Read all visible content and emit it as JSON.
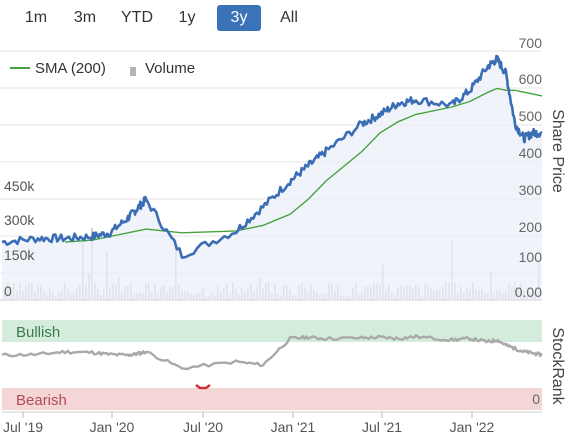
{
  "range_tabs": [
    {
      "label": "1m",
      "active": false
    },
    {
      "label": "3m",
      "active": false
    },
    {
      "label": "YTD",
      "active": false
    },
    {
      "label": "1y",
      "active": false
    },
    {
      "label": "3y",
      "active": true
    },
    {
      "label": "All",
      "active": false
    }
  ],
  "legend": {
    "sma_label": "SMA (200)",
    "volume_label": "Volume"
  },
  "axis": {
    "right_title": "Share Price",
    "stockrank_title": "StockRank",
    "price_ticks": [
      "700",
      "600",
      "500",
      "400",
      "300",
      "200",
      "100",
      "0.00"
    ],
    "volume_ticks": [
      "450k",
      "300k",
      "150k",
      "0"
    ],
    "x_ticks": [
      "Jul '19",
      "Jan '20",
      "Jul '20",
      "Jan '21",
      "Jul '21",
      "Jan '22"
    ],
    "stockrank_zero": "0"
  },
  "bands": {
    "bullish": "Bullish",
    "bearish": "Bearish"
  },
  "colors": {
    "price": "#3b6db5",
    "sma": "#46a33e",
    "bullish_bg": "#d3ecdc",
    "bearish_bg": "#f4d6d7",
    "stockrank": "#a9a9a9",
    "tab_active": "#3b73b9"
  },
  "chart_data": {
    "type": "line",
    "x": [
      0,
      0.2,
      0.35,
      0.5,
      0.6,
      0.7,
      0.75,
      0.8,
      1.0,
      1.3,
      1.45,
      1.6,
      1.7,
      1.8,
      2.0,
      2.1,
      2.2,
      2.3,
      2.5,
      2.6,
      2.7,
      2.75,
      2.8,
      2.85,
      2.9,
      2.95,
      3.0
    ],
    "x_tick_labels": [
      "Jul '19",
      "Jan '20",
      "Jul '20",
      "Jan '21",
      "Jul '21",
      "Jan '22"
    ],
    "ylim": [
      0,
      700
    ],
    "series": [
      {
        "name": "Share price",
        "values": [
          135,
          145,
          145,
          150,
          160,
          200,
          225,
          250,
          100,
          165,
          230,
          300,
          340,
          380,
          455,
          480,
          510,
          520,
          505,
          545,
          610,
          630,
          590,
          455,
          415,
          430,
          430
        ]
      },
      {
        "name": "SMA (200)",
        "values": [
          null,
          null,
          135,
          140,
          150,
          160,
          165,
          170,
          160,
          165,
          180,
          210,
          250,
          300,
          380,
          430,
          460,
          480,
          500,
          515,
          540,
          550,
          545,
          545,
          540,
          535,
          530
        ]
      }
    ],
    "stockrank": {
      "ylim": [
        0,
        100
      ],
      "values": [
        65,
        66,
        70,
        69,
        66,
        65,
        67,
        70,
        45,
        55,
        50,
        90,
        92,
        90,
        91,
        92,
        90,
        93,
        88,
        90,
        85,
        88,
        80,
        75,
        70,
        68,
        65
      ]
    }
  }
}
